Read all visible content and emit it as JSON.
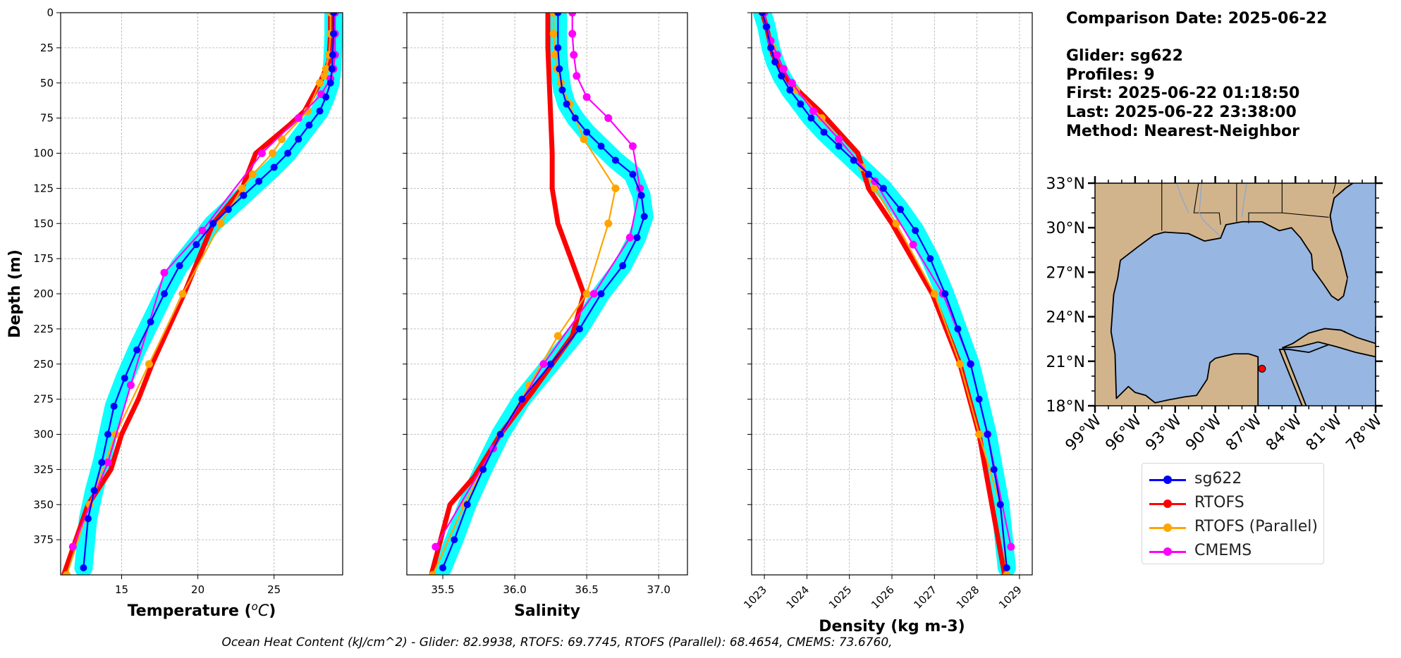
{
  "chart_data": [
    {
      "type": "line",
      "xlabel": "Temperature ($^oC$)",
      "ylabel": "Depth (m)",
      "ylim": [
        400,
        0
      ],
      "xlim": [
        11,
        29.5
      ],
      "xticks": [
        "15",
        "20",
        "25"
      ],
      "yticks": [
        "0",
        "25",
        "50",
        "75",
        "100",
        "125",
        "150",
        "175",
        "200",
        "225",
        "250",
        "275",
        "300",
        "325",
        "350",
        "375"
      ],
      "grid": true,
      "series": [
        {
          "name": "sg622",
          "color": "#0000ff",
          "envelope": true,
          "x": [
            28.9,
            28.9,
            28.85,
            28.8,
            28.7,
            28.4,
            28.0,
            27.3,
            26.6,
            25.9,
            25.0,
            24.0,
            23.0,
            22.0,
            21.0,
            19.9,
            18.8,
            17.8,
            16.9,
            16.0,
            15.2,
            14.5,
            14.1,
            13.7,
            13.2,
            12.8,
            12.5
          ],
          "y": [
            0,
            15,
            30,
            40,
            50,
            60,
            70,
            80,
            90,
            100,
            110,
            120,
            130,
            140,
            150,
            165,
            180,
            200,
            220,
            240,
            260,
            280,
            300,
            320,
            340,
            360,
            395
          ]
        },
        {
          "name": "RTOFS",
          "color": "#ff0000",
          "x": [
            28.7,
            28.7,
            28.6,
            28.0,
            27.0,
            26.0,
            23.8,
            22.9,
            21.0,
            19.1,
            17.0,
            16.1,
            15.0,
            14.3,
            12.8,
            11.2
          ],
          "y": [
            0,
            15,
            35,
            50,
            70,
            80,
            100,
            125,
            150,
            200,
            250,
            275,
            300,
            325,
            350,
            400
          ]
        },
        {
          "name": "RTOFS (Parallel)",
          "color": "#ffa500",
          "x": [
            28.7,
            28.7,
            28.6,
            28.4,
            28.3,
            28.0,
            27.2,
            25.5,
            24.9,
            23.6,
            22.9,
            21.5,
            19.0,
            16.8,
            14.6,
            12.9,
            11.4
          ],
          "y": [
            0,
            15,
            30,
            40,
            45,
            50,
            70,
            90,
            100,
            115,
            125,
            150,
            200,
            250,
            300,
            350,
            400
          ]
        },
        {
          "name": "CMEMS",
          "color": "#ff00ff",
          "x": [
            29.0,
            29.0,
            29.0,
            28.9,
            28.7,
            28.1,
            26.6,
            24.2,
            20.3,
            17.8,
            15.6,
            14.1,
            11.8
          ],
          "y": [
            0,
            15,
            30,
            40,
            47,
            58,
            75,
            100,
            155,
            185,
            265,
            320,
            380
          ]
        }
      ]
    },
    {
      "type": "line",
      "xlabel": "Salinity",
      "ylim": [
        400,
        0
      ],
      "xlim": [
        35.25,
        37.2
      ],
      "xticks": [
        "35.5",
        "36.0",
        "36.5",
        "37.0"
      ],
      "grid": true,
      "series": [
        {
          "name": "sg622",
          "color": "#0000ff",
          "envelope": true,
          "x": [
            36.3,
            36.3,
            36.31,
            36.33,
            36.36,
            36.42,
            36.5,
            36.6,
            36.7,
            36.82,
            36.88,
            36.9,
            36.85,
            36.75,
            36.6,
            36.45,
            36.25,
            36.05,
            35.9,
            35.78,
            35.67,
            35.58,
            35.5
          ],
          "y": [
            0,
            25,
            40,
            55,
            65,
            75,
            85,
            95,
            105,
            115,
            130,
            145,
            160,
            180,
            200,
            225,
            250,
            275,
            300,
            325,
            350,
            375,
            395
          ]
        },
        {
          "name": "RTOFS",
          "color": "#ff0000",
          "x": [
            36.23,
            36.23,
            36.24,
            36.25,
            36.26,
            36.26,
            36.3,
            36.48,
            36.4,
            36.12,
            35.9,
            35.72,
            35.55,
            35.42
          ],
          "y": [
            0,
            25,
            50,
            75,
            100,
            125,
            150,
            200,
            230,
            270,
            300,
            330,
            350,
            400
          ]
        },
        {
          "name": "RTOFS (Parallel)",
          "color": "#ffa500",
          "x": [
            36.27,
            36.27,
            36.28,
            36.29,
            36.32,
            36.38,
            36.48,
            36.7,
            36.65,
            36.5,
            36.3,
            36.1,
            35.9,
            35.65,
            35.43
          ],
          "y": [
            0,
            15,
            30,
            40,
            50,
            65,
            90,
            125,
            150,
            200,
            230,
            265,
            300,
            350,
            400
          ]
        },
        {
          "name": "CMEMS",
          "color": "#ff00ff",
          "x": [
            36.4,
            36.4,
            36.41,
            36.43,
            36.5,
            36.65,
            36.82,
            36.87,
            36.8,
            36.55,
            36.2,
            35.85,
            35.45
          ],
          "y": [
            0,
            15,
            30,
            45,
            60,
            75,
            95,
            125,
            160,
            200,
            250,
            310,
            380
          ]
        }
      ]
    },
    {
      "type": "line",
      "xlabel": "Density (kg m-3)",
      "ylim": [
        400,
        0
      ],
      "xlim": [
        1022.7,
        1029.3
      ],
      "xticks": [
        "1023",
        "1024",
        "1025",
        "1026",
        "1027",
        "1028",
        "1029"
      ],
      "grid": true,
      "series": [
        {
          "name": "sg622",
          "color": "#0000ff",
          "envelope": true,
          "x": [
            1022.95,
            1023.05,
            1023.15,
            1023.25,
            1023.4,
            1023.6,
            1023.85,
            1024.1,
            1024.4,
            1024.75,
            1025.1,
            1025.45,
            1025.8,
            1026.2,
            1026.55,
            1026.9,
            1027.25,
            1027.55,
            1027.85,
            1028.05,
            1028.25,
            1028.4,
            1028.55,
            1028.7
          ],
          "y": [
            0,
            10,
            25,
            35,
            45,
            55,
            65,
            75,
            85,
            95,
            105,
            115,
            125,
            140,
            155,
            175,
            200,
            225,
            250,
            275,
            300,
            325,
            350,
            395
          ]
        },
        {
          "name": "RTOFS",
          "color": "#ff0000",
          "x": [
            1022.95,
            1023.05,
            1023.2,
            1023.6,
            1024.3,
            1024.75,
            1025.2,
            1025.45,
            1026.0,
            1026.95,
            1027.6,
            1028.05,
            1028.65
          ],
          "y": [
            0,
            10,
            30,
            50,
            70,
            85,
            100,
            125,
            150,
            200,
            250,
            300,
            400
          ]
        },
        {
          "name": "RTOFS (Parallel)",
          "color": "#ffa500",
          "x": [
            1022.95,
            1023.05,
            1023.2,
            1023.45,
            1023.75,
            1024.35,
            1024.75,
            1025.3,
            1025.6,
            1026.1,
            1027.0,
            1027.6,
            1028.05,
            1028.55,
            1028.7
          ],
          "y": [
            0,
            10,
            25,
            40,
            55,
            75,
            90,
            110,
            125,
            150,
            200,
            250,
            300,
            350,
            400
          ]
        },
        {
          "name": "CMEMS",
          "color": "#ff00ff",
          "x": [
            1023.0,
            1023.05,
            1023.15,
            1023.3,
            1023.45,
            1023.65,
            1024.15,
            1024.75,
            1025.6,
            1026.5,
            1027.2,
            1027.85,
            1028.25,
            1028.8
          ],
          "y": [
            0,
            10,
            20,
            30,
            40,
            50,
            70,
            90,
            120,
            165,
            200,
            250,
            300,
            380
          ]
        }
      ]
    }
  ],
  "map": {
    "lat_ticks": [
      "33°N",
      "30°N",
      "27°N",
      "24°N",
      "21°N",
      "18°N"
    ],
    "lon_ticks": [
      "99°W",
      "96°W",
      "93°W",
      "90°W",
      "87°W",
      "84°W",
      "81°W",
      "78°W"
    ],
    "land_color": "#d2b48c",
    "ocean_color": "#97b6e1",
    "marker": {
      "lon": -86.5,
      "lat": 20.5,
      "color": "#ff0000"
    }
  },
  "info": {
    "comparison_date": "Comparison Date: 2025-06-22",
    "glider": "Glider: sg622",
    "profiles": "Profiles: 9",
    "first": "First: 2025-06-22 01:18:50",
    "last": "Last: 2025-06-22 23:38:00",
    "method": "Method: Nearest-Neighbor"
  },
  "legend": [
    {
      "label": "sg622",
      "color": "#0000ff"
    },
    {
      "label": "RTOFS",
      "color": "#ff0000"
    },
    {
      "label": "RTOFS (Parallel)",
      "color": "#ffa500"
    },
    {
      "label": "CMEMS",
      "color": "#ff00ff"
    }
  ],
  "footer": "Ocean Heat Content (kJ/cm^2) - Glider: 82.9938,  RTOFS: 69.7745,  RTOFS (Parallel): 68.4654,  CMEMS: 73.6760,"
}
